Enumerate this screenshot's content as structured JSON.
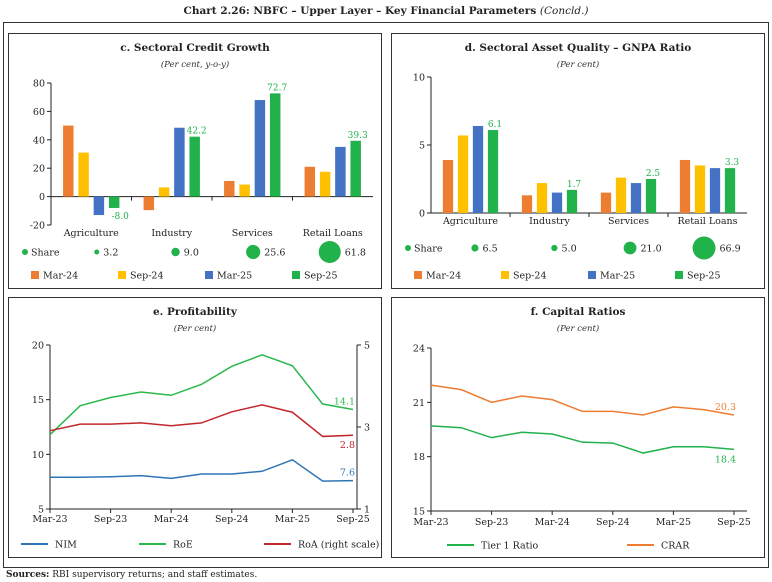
{
  "title": {
    "main": "Chart 2.26: NBFC – Upper Layer – Key Financial Parameters",
    "suffix": "(Concld.)"
  },
  "sources": {
    "label": "Sources:",
    "text": "RBI supervisory returns; and staff estimates."
  },
  "colors": {
    "mar24": "#ED7D31",
    "sep24": "#FFC000",
    "mar25": "#4472C4",
    "sep25": "#21B24B",
    "nim": "#2E75B6",
    "roe": "#2DB84C",
    "roa": "#C0272D",
    "tier1": "#21B24B",
    "crar": "#ED7D31"
  },
  "chart_data": [
    {
      "id": "c",
      "type": "bar",
      "title": "c. Sectoral Credit Growth",
      "subtitle": "(Per cent, y-o-y)",
      "categories": [
        "Agriculture",
        "Industry",
        "Services",
        "Retail Loans"
      ],
      "ylim": [
        -20,
        80
      ],
      "yticks": [
        -20,
        0,
        20,
        40,
        60,
        80
      ],
      "series": [
        {
          "name": "Mar-24",
          "color_key": "mar24",
          "values": [
            50,
            -9.5,
            11,
            21
          ]
        },
        {
          "name": "Sep-24",
          "color_key": "sep24",
          "values": [
            31,
            6.5,
            8.5,
            17.5
          ]
        },
        {
          "name": "Mar-25",
          "color_key": "mar25",
          "values": [
            -13,
            48.5,
            68,
            35
          ]
        },
        {
          "name": "Sep-25",
          "color_key": "sep25",
          "values": [
            -8.0,
            42.2,
            72.7,
            39.3
          ],
          "labels": [
            "-8.0",
            "42.2",
            "72.7",
            "39.3"
          ]
        }
      ],
      "share": {
        "label": "Share",
        "values": [
          3.2,
          9.0,
          25.6,
          61.8
        ],
        "labels": [
          "3.2",
          "9.0",
          "25.6",
          "61.8"
        ]
      },
      "legend": "bottom"
    },
    {
      "id": "d",
      "type": "bar",
      "title": "d. Sectoral Asset Quality – GNPA Ratio",
      "subtitle": "(Per cent)",
      "categories": [
        "Agriculture",
        "Industry",
        "Services",
        "Retail Loans"
      ],
      "ylim": [
        0,
        10
      ],
      "yticks": [
        0,
        5,
        10
      ],
      "series": [
        {
          "name": "Mar-24",
          "color_key": "mar24",
          "values": [
            3.9,
            1.3,
            1.5,
            3.9
          ]
        },
        {
          "name": "Sep-24",
          "color_key": "sep24",
          "values": [
            5.7,
            2.2,
            2.6,
            3.5
          ]
        },
        {
          "name": "Mar-25",
          "color_key": "mar25",
          "values": [
            6.4,
            1.5,
            2.2,
            3.3
          ]
        },
        {
          "name": "Sep-25",
          "color_key": "sep25",
          "values": [
            6.1,
            1.7,
            2.5,
            3.3
          ],
          "labels": [
            "6.1",
            "1.7",
            "2.5",
            "3.3"
          ]
        }
      ],
      "share": {
        "label": "Share",
        "values": [
          6.5,
          5.0,
          21.0,
          66.9
        ],
        "labels": [
          "6.5",
          "5.0",
          "21.0",
          "66.9"
        ]
      },
      "legend": "bottom"
    },
    {
      "id": "e",
      "type": "line",
      "title": "e. Profitability",
      "subtitle": "(Per cent)",
      "x": [
        "Mar-23",
        "Jun-23",
        "Sep-23",
        "Dec-23",
        "Mar-24",
        "Jun-24",
        "Sep-24",
        "Dec-24",
        "Mar-25",
        "Jun-25",
        "Sep-25"
      ],
      "xticks": [
        "Mar-23",
        "Sep-23",
        "Mar-24",
        "Sep-24",
        "Mar-25",
        "Sep-25"
      ],
      "ylim": [
        5,
        20
      ],
      "yticks": [
        5,
        10,
        15,
        20
      ],
      "y2lim": [
        1,
        5
      ],
      "y2ticks": [
        1,
        3,
        5
      ],
      "series": [
        {
          "name": "NIM",
          "color_key": "nim",
          "axis": "left",
          "values": [
            7.9,
            7.9,
            7.95,
            8.05,
            7.8,
            8.2,
            8.2,
            8.45,
            9.5,
            7.55,
            7.6
          ],
          "end_label": "7.6"
        },
        {
          "name": "RoE",
          "color_key": "roe",
          "axis": "left",
          "values": [
            11.8,
            14.45,
            15.2,
            15.7,
            15.4,
            16.4,
            18.05,
            19.1,
            18.1,
            14.6,
            14.1
          ],
          "end_label": "14.1"
        },
        {
          "name": "RoA (right scale)",
          "color_key": "roa",
          "axis": "right",
          "values": [
            2.91,
            3.07,
            3.07,
            3.1,
            3.03,
            3.1,
            3.37,
            3.54,
            3.36,
            2.77,
            2.8
          ],
          "end_label": "2.8"
        }
      ],
      "legend": "bottom"
    },
    {
      "id": "f",
      "type": "line",
      "title": "f. Capital Ratios",
      "subtitle": "(Per cent)",
      "x": [
        "Mar-23",
        "Jun-23",
        "Sep-23",
        "Dec-23",
        "Mar-24",
        "Jun-24",
        "Sep-24",
        "Dec-24",
        "Mar-25",
        "Jun-25",
        "Sep-25"
      ],
      "xticks": [
        "Mar-23",
        "Sep-23",
        "Mar-24",
        "Sep-24",
        "Mar-25",
        "Sep-25"
      ],
      "ylim": [
        15,
        24
      ],
      "yticks": [
        15,
        18,
        21,
        24
      ],
      "series": [
        {
          "name": "Tier 1 Ratio",
          "color_key": "tier1",
          "axis": "left",
          "values": [
            19.7,
            19.6,
            19.05,
            19.35,
            19.25,
            18.8,
            18.75,
            18.2,
            18.55,
            18.55,
            18.4
          ],
          "end_label": "18.4"
        },
        {
          "name": "CRAR",
          "color_key": "crar",
          "axis": "left",
          "values": [
            21.95,
            21.7,
            21.0,
            21.35,
            21.15,
            20.5,
            20.5,
            20.3,
            20.75,
            20.6,
            20.3
          ],
          "end_label": "20.3"
        }
      ],
      "legend": "bottom"
    }
  ]
}
